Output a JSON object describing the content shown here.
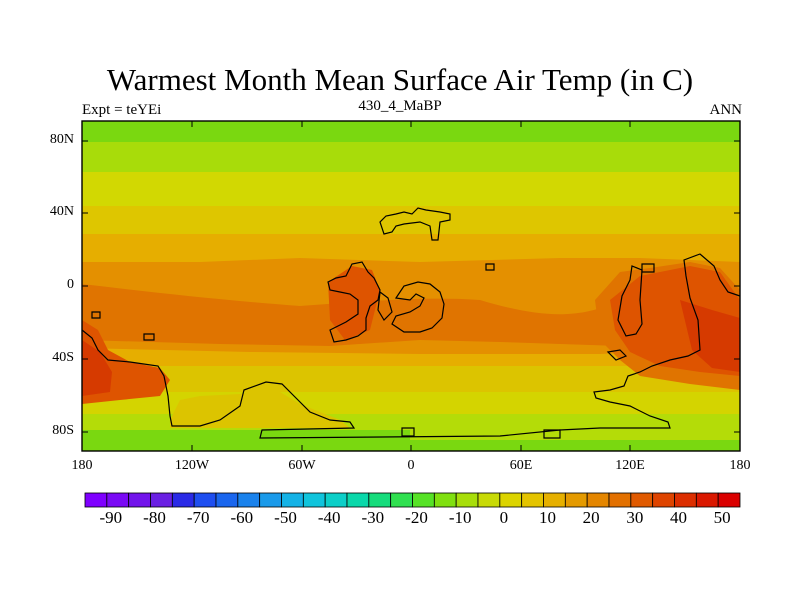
{
  "title": "Warmest Month Mean Surface Air Temp (in C)",
  "subtitle_left": "Expt = teYEi",
  "subtitle_center": "430_4_MaBP",
  "subtitle_right": "ANN",
  "lat_labels": [
    "80N",
    "40N",
    "0",
    "40S",
    "80S"
  ],
  "lon_labels": [
    "180",
    "120W",
    "60W",
    "0",
    "60E",
    "120E",
    "180"
  ],
  "colorbar": {
    "labels": [
      "-90",
      "-80",
      "-70",
      "-60",
      "-50",
      "-40",
      "-30",
      "-20",
      "-10",
      "0",
      "10",
      "20",
      "30",
      "40",
      "50"
    ],
    "colors": [
      "#7f00ff",
      "#7a0af5",
      "#7214eb",
      "#6a20e3",
      "#2a2ae6",
      "#1e4ef0",
      "#1a66ee",
      "#1a82ec",
      "#1a9aea",
      "#14b2e6",
      "#10c4dc",
      "#0ccfc8",
      "#0ad8aa",
      "#16dc7c",
      "#30e050",
      "#56e226",
      "#80e010",
      "#a8de0a",
      "#c8da06",
      "#dcd400",
      "#e4c400",
      "#e6b000",
      "#e49a00",
      "#e48600",
      "#e27000",
      "#e05a00",
      "#de4400",
      "#dc2e00",
      "#da1800",
      "#da0000"
    ]
  },
  "palette": {
    "green": "#7ad810",
    "lime": "#b2dc0a",
    "yellow": "#d8d600",
    "yellow_orange": "#e0c200",
    "gold": "#e6ae00",
    "orange": "#e49000",
    "dark_orange": "#e07400",
    "red_orange": "#de5400",
    "red": "#d63a00"
  }
}
